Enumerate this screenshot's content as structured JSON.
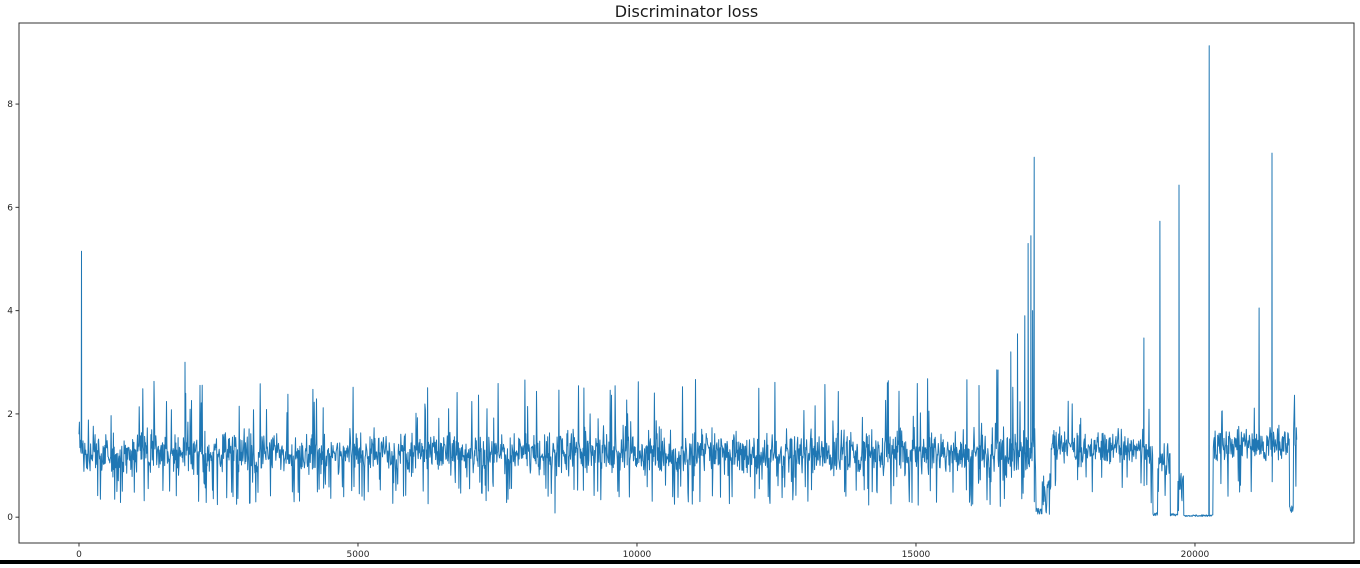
{
  "title": "Discriminator loss",
  "colors": {
    "line": "#1f77b4",
    "spine": "#333333",
    "text": "#262626",
    "title_text": "#1a1a1a",
    "bottom_bar": "#000000"
  },
  "chart_data": {
    "type": "line",
    "title": "Discriminator loss",
    "xlabel": "",
    "ylabel": "",
    "legend": "none",
    "grid": false,
    "series": [
      {
        "name": "discriminator loss",
        "color": "#1f77b4"
      }
    ],
    "x_ticks": [
      0,
      5000,
      10000,
      15000,
      20000
    ],
    "y_ticks": [
      0,
      2,
      4,
      6,
      8
    ],
    "xlim": [
      -1075,
      22850
    ],
    "ylim": [
      -0.5,
      9.57
    ],
    "x_end": 21830,
    "noise_band_segments": [
      [
        0,
        60,
        1.0,
        2.0,
        0.3
      ],
      [
        60,
        1000,
        0.72,
        1.72,
        0.65
      ],
      [
        1000,
        8000,
        0.68,
        1.8,
        0.9
      ],
      [
        8000,
        16000,
        0.62,
        1.85,
        0.85
      ],
      [
        16000,
        16950,
        0.55,
        1.95,
        1.1
      ],
      [
        16950,
        17150,
        0.5,
        1.9,
        1.0
      ],
      [
        17262,
        17420,
        0.15,
        1.05,
        0.35
      ],
      [
        17420,
        19085,
        0.85,
        1.85,
        0.5
      ],
      [
        19085,
        19245,
        0.65,
        1.75,
        0.4
      ],
      [
        19335,
        19557,
        0.5,
        1.65,
        0.45
      ],
      [
        19690,
        19800,
        0.2,
        1.15,
        0.3
      ],
      [
        20320,
        21830,
        0.85,
        1.95,
        0.55
      ]
    ],
    "flat_near_zero_segments": [
      [
        17150,
        17262,
        0.12
      ],
      [
        19245,
        19335,
        0.06
      ],
      [
        19557,
        19690,
        0.05
      ],
      [
        19800,
        20320,
        0.03
      ],
      [
        21690,
        21762,
        0.15
      ]
    ],
    "spikes": [
      [
        45,
        5.15
      ],
      [
        1900,
        3.0
      ],
      [
        8530,
        0.08
      ],
      [
        16130,
        2.55
      ],
      [
        16470,
        2.85
      ],
      [
        16700,
        3.2
      ],
      [
        16820,
        3.55
      ],
      [
        16950,
        3.9
      ],
      [
        17010,
        5.3
      ],
      [
        17060,
        5.45
      ],
      [
        17090,
        4.0
      ],
      [
        17118,
        6.97
      ],
      [
        19085,
        3.47
      ],
      [
        19372,
        5.73
      ],
      [
        19713,
        6.43
      ],
      [
        20255,
        9.13
      ],
      [
        21150,
        4.05
      ],
      [
        21380,
        7.05
      ]
    ]
  }
}
